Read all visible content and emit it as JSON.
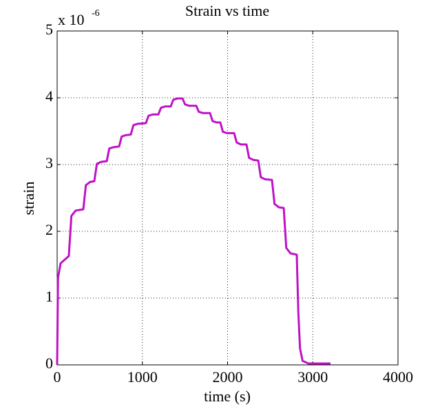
{
  "chart_data": {
    "type": "line",
    "title": "Strain vs time",
    "xlabel": "time (s)",
    "ylabel": "strain",
    "y_multiplier": "x 10",
    "y_multiplier_exponent": "-6",
    "xlim": [
      0,
      4000
    ],
    "xticks": [
      0,
      1000,
      2000,
      3000,
      4000
    ],
    "ylim": [
      0,
      5
    ],
    "yticks": [
      0,
      1,
      2,
      3,
      4,
      5
    ],
    "grid": true,
    "series": [
      {
        "name": "strain",
        "color": "#c010c8",
        "x": [
          0,
          10,
          40,
          137,
          167,
          217,
          307,
          337,
          387,
          436,
          466,
          516,
          582,
          612,
          662,
          727,
          757,
          807,
          865,
          895,
          945,
          1042,
          1072,
          1122,
          1188,
          1218,
          1268,
          1333,
          1363,
          1413,
          1471,
          1501,
          1551,
          1632,
          1662,
          1712,
          1794,
          1824,
          1874,
          1915,
          1945,
          1995,
          2077,
          2107,
          2157,
          2222,
          2252,
          2302,
          2360,
          2390,
          2440,
          2521,
          2551,
          2601,
          2659,
          2689,
          2739,
          2812,
          2830,
          2850,
          2880,
          2950,
          3208
        ],
        "values": [
          0,
          1.3,
          1.52,
          1.63,
          2.23,
          2.31,
          2.33,
          2.69,
          2.74,
          2.75,
          3.01,
          3.04,
          3.05,
          3.24,
          3.26,
          3.27,
          3.42,
          3.44,
          3.45,
          3.59,
          3.61,
          3.62,
          3.73,
          3.75,
          3.75,
          3.85,
          3.87,
          3.87,
          3.97,
          3.99,
          3.99,
          3.9,
          3.88,
          3.88,
          3.79,
          3.77,
          3.77,
          3.65,
          3.63,
          3.63,
          3.49,
          3.47,
          3.47,
          3.33,
          3.3,
          3.3,
          3.1,
          3.07,
          3.06,
          2.81,
          2.78,
          2.77,
          2.41,
          2.36,
          2.35,
          1.75,
          1.67,
          1.65,
          0.8,
          0.25,
          0.06,
          0.02,
          0.02
        ]
      }
    ]
  }
}
